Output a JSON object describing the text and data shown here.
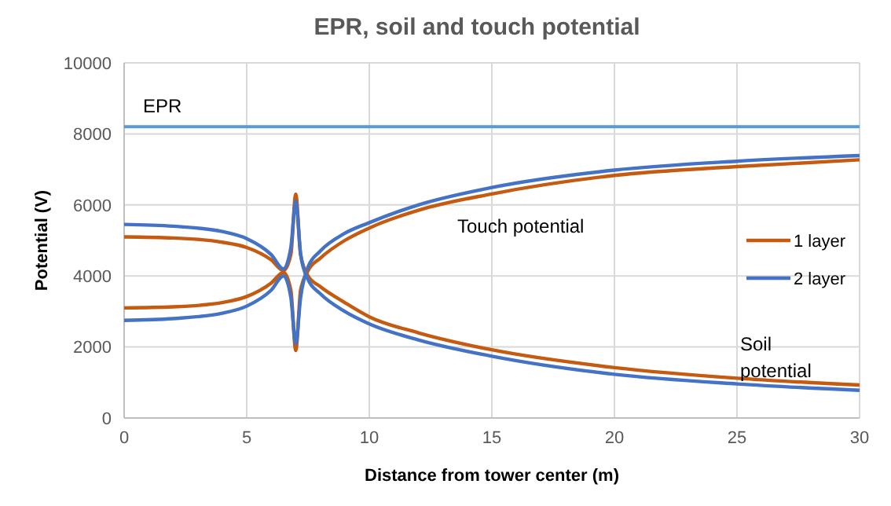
{
  "chart_data": {
    "type": "line",
    "title": "EPR, soil and touch potential",
    "xlabel": "Distance  from tower center (m)",
    "ylabel": "Potential (V)",
    "xlim": [
      0,
      30
    ],
    "xticks": [
      0,
      5,
      10,
      15,
      20,
      25,
      30
    ],
    "ylim": [
      0,
      10000
    ],
    "yticks": [
      0,
      2000,
      4000,
      6000,
      8000,
      10000
    ],
    "grid": true,
    "legend": "right",
    "marker": "none",
    "line_style": "solid",
    "ref_lines": [
      {
        "axis": "y",
        "value": 8200,
        "label": "EPR",
        "color": "#5b9bd5"
      }
    ],
    "annotations": [
      "Touch potential",
      "Soil potential"
    ],
    "series": [
      {
        "name": "1 layer",
        "color": "#c55a11",
        "x": [
          0,
          2,
          4,
          5,
          6,
          6.5,
          6.8,
          7,
          7.2,
          7.5,
          8,
          9,
          10,
          12,
          15,
          20,
          25,
          30
        ],
        "values": [
          3100,
          3130,
          3250,
          3420,
          3800,
          4100,
          3600,
          1900,
          3600,
          4150,
          4500,
          5000,
          5350,
          5850,
          6310,
          6830,
          7080,
          7270
        ]
      },
      {
        "name": "2 layer",
        "color": "#4472c4",
        "x": [
          0,
          2,
          4,
          5,
          6,
          6.5,
          6.8,
          7,
          7.2,
          7.5,
          8,
          9,
          10,
          12,
          15,
          20,
          25,
          30
        ],
        "values": [
          2750,
          2800,
          2950,
          3150,
          3600,
          4000,
          3400,
          2100,
          3400,
          4250,
          4700,
          5200,
          5500,
          6000,
          6490,
          6980,
          7230,
          7390
        ]
      },
      {
        "color": "#c55a11",
        "x": [
          0,
          2,
          4,
          5,
          6,
          6.5,
          6.8,
          7,
          7.2,
          7.5,
          8,
          9,
          10,
          12,
          15,
          20,
          25,
          30
        ],
        "values": [
          5100,
          5070,
          4950,
          4800,
          4450,
          4150,
          4600,
          6300,
          4600,
          4000,
          3700,
          3250,
          2850,
          2400,
          1920,
          1420,
          1120,
          930
        ]
      },
      {
        "color": "#4472c4",
        "x": [
          0,
          2,
          4,
          5,
          6,
          6.5,
          6.8,
          7,
          7.2,
          7.5,
          8,
          9,
          10,
          12,
          15,
          20,
          25,
          30
        ],
        "values": [
          5450,
          5400,
          5250,
          5050,
          4600,
          4200,
          4800,
          6100,
          4600,
          3900,
          3500,
          3000,
          2650,
          2200,
          1740,
          1230,
          960,
          780
        ]
      }
    ]
  }
}
